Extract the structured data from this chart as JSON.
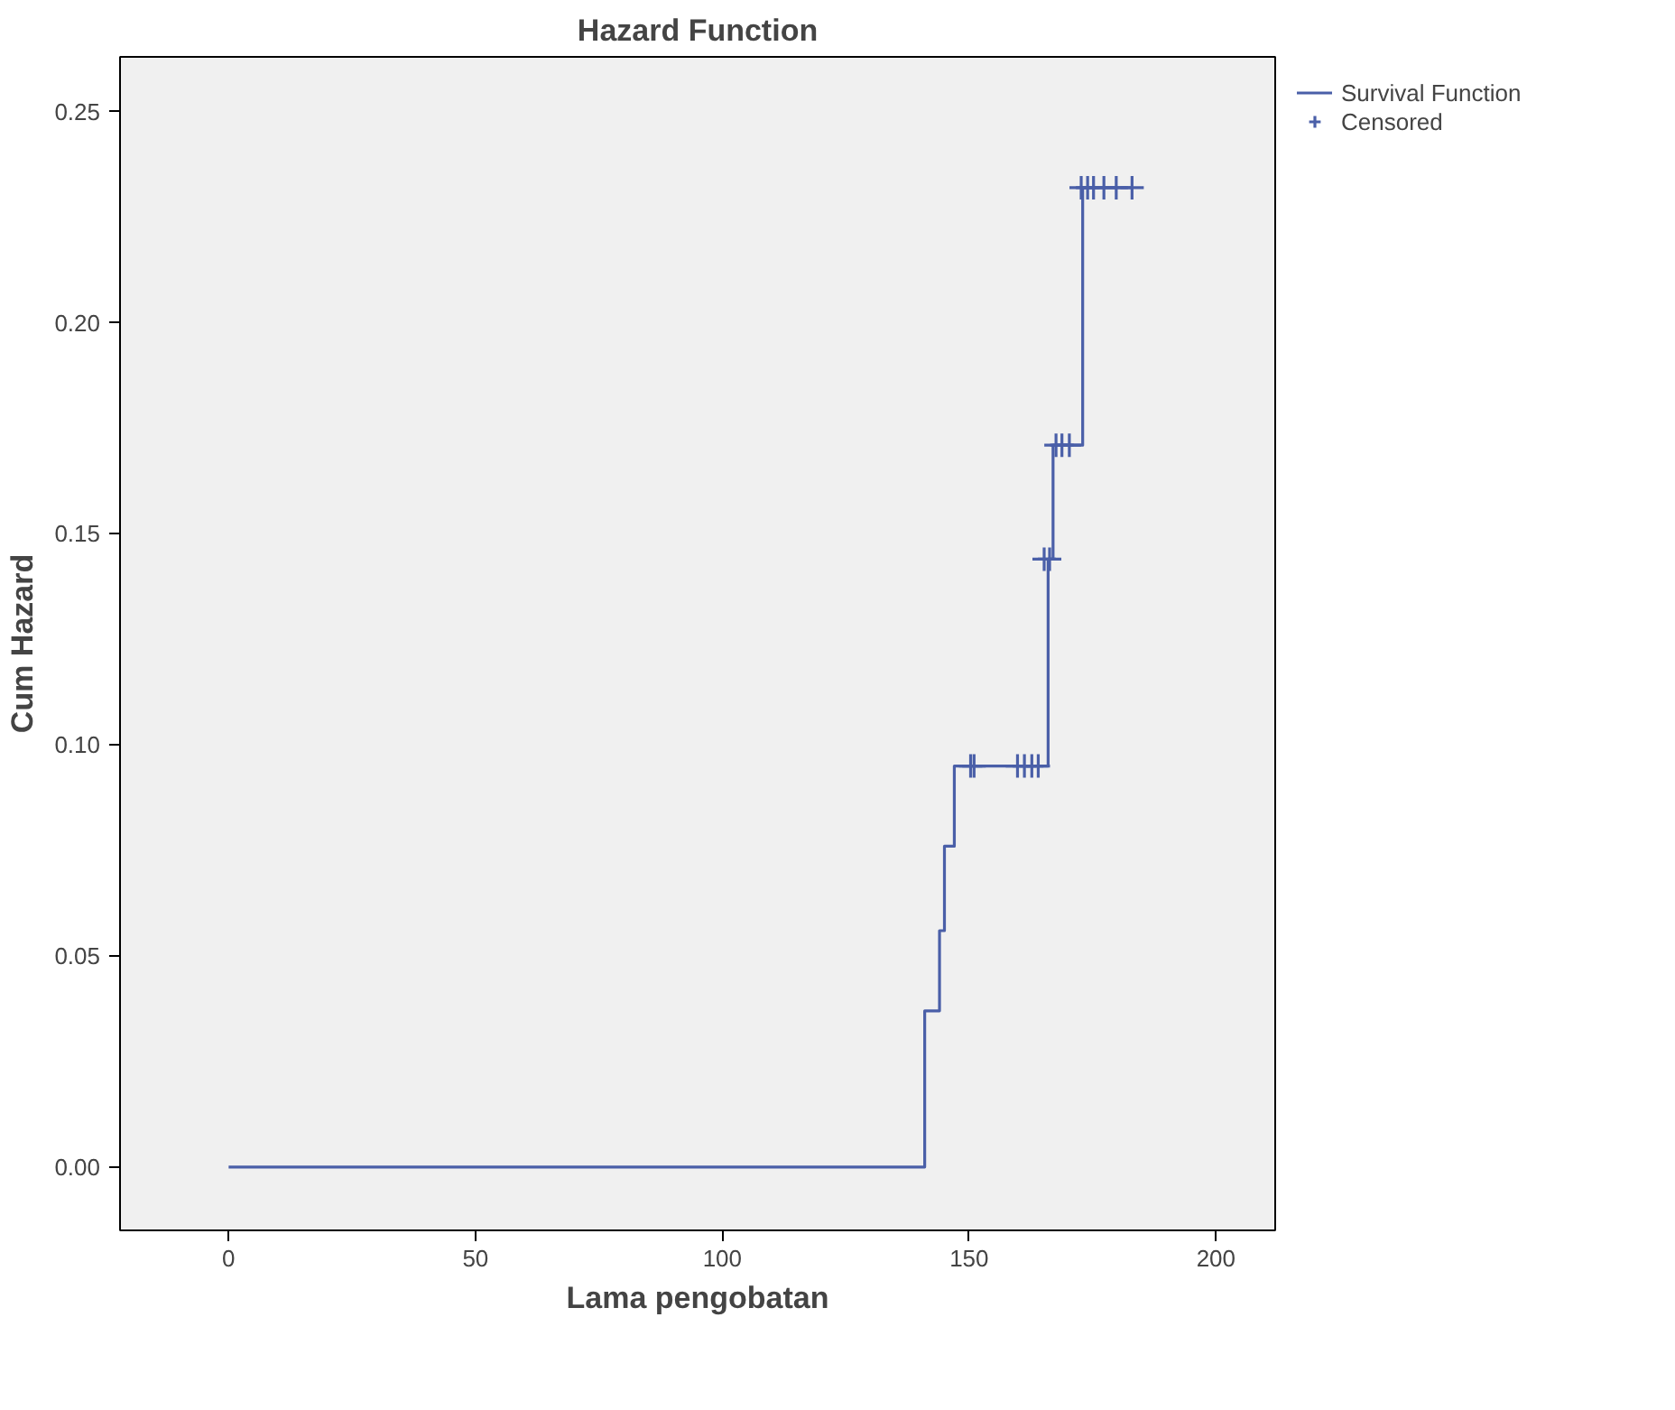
{
  "chart_data": {
    "type": "step",
    "title": "Hazard Function",
    "xlabel": "Lama pengobatan",
    "ylabel": "Cum Hazard",
    "xlim": [
      -22,
      212
    ],
    "ylim": [
      -0.015,
      0.263
    ],
    "xticks": [
      0,
      50,
      100,
      150,
      200
    ],
    "yticks": [
      {
        "value": 0,
        "label": "0.00"
      },
      {
        "value": 0.05,
        "label": "0.05"
      },
      {
        "value": 0.1,
        "label": "0.10"
      },
      {
        "value": 0.15,
        "label": "0.15"
      },
      {
        "value": 0.2,
        "label": "0.20"
      },
      {
        "value": 0.25,
        "label": "0.25"
      }
    ],
    "grid": false,
    "legend": "top right",
    "series": [
      {
        "name": "Survival Function",
        "color": "#4a5fa8",
        "x": [
          0,
          141,
          144,
          145,
          147,
          166,
          167,
          173,
          183
        ],
        "values": [
          0,
          0.037,
          0.056,
          0.076,
          0.095,
          0.144,
          0.171,
          0.232,
          0.232
        ]
      },
      {
        "name": "Censored",
        "type": "scatter",
        "marker": "cross",
        "color": "#4a5fa8",
        "x": [
          150.3,
          151,
          159.8,
          161.2,
          162.7,
          164,
          165.2,
          166.3,
          167.6,
          168.8,
          170.3,
          172.7,
          174,
          175.2,
          177.3,
          179.8,
          183
        ],
        "values": [
          0.095,
          0.095,
          0.095,
          0.095,
          0.095,
          0.095,
          0.144,
          0.144,
          0.171,
          0.171,
          0.171,
          0.232,
          0.232,
          0.232,
          0.232,
          0.232,
          0.232
        ]
      }
    ]
  }
}
